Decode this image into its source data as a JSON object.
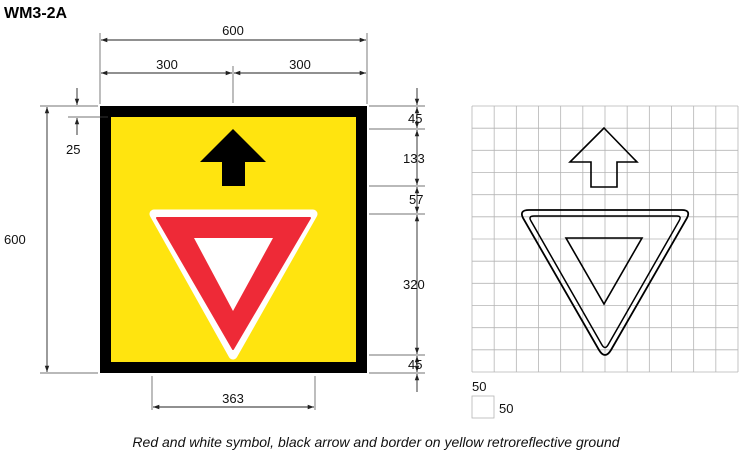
{
  "sign_code": "WM3-2A",
  "caption": "Red and white symbol, black arrow and border on yellow retroreflective ground",
  "dimensions": {
    "overall_width": "600",
    "half_left": "300",
    "half_right": "300",
    "overall_height": "600",
    "border_offset": "25",
    "top_margin": "45",
    "arrow_height": "133",
    "gap": "57",
    "triangle_height": "320",
    "bottom_margin": "45",
    "triangle_width": "363"
  },
  "grid_key": {
    "cell_width": "50",
    "cell_height": "50"
  },
  "colors": {
    "border": "#000000",
    "ground": "#FFE40F",
    "triangle_red": "#EE2A37",
    "triangle_white": "#FFFFFF",
    "arrow": "#000000"
  }
}
